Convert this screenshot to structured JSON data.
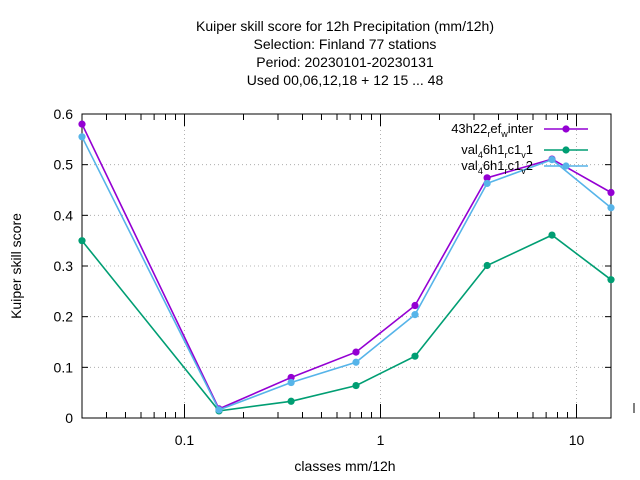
{
  "chart_data": {
    "type": "line",
    "title_lines": [
      "Kuiper skill score  for 12h Precipitation (mm/12h)",
      "Selection: Finland     77 stations",
      "Period: 20230101-20230131",
      "Used  00,06,12,18  + 12 15 ... 48"
    ],
    "xlabel": "classes mm/12h",
    "ylabel": "Kuiper skill score",
    "x_scale": "log",
    "xlim": [
      0.03,
      15
    ],
    "ylim": [
      0,
      0.6
    ],
    "x_ticks": [
      {
        "value": 0.1,
        "label": "0.1"
      },
      {
        "value": 1,
        "label": "1"
      },
      {
        "value": 10,
        "label": "10"
      }
    ],
    "y_ticks": [
      {
        "value": 0,
        "label": "0"
      },
      {
        "value": 0.1,
        "label": "0.1"
      },
      {
        "value": 0.2,
        "label": "0.2"
      },
      {
        "value": 0.3,
        "label": "0.3"
      },
      {
        "value": 0.4,
        "label": "0.4"
      },
      {
        "value": 0.5,
        "label": "0.5"
      },
      {
        "value": 0.6,
        "label": "0.6"
      }
    ],
    "grid": true,
    "legend_position": "top-right",
    "x": [
      0.03,
      0.15,
      0.35,
      0.75,
      1.5,
      3.5,
      7.5,
      15
    ],
    "series": [
      {
        "name": "43h22_ref_winter",
        "legend_parts": [
          [
            "43h22",
            "base"
          ],
          [
            "r",
            "sub"
          ],
          [
            "ef",
            "base"
          ],
          [
            "w",
            "sub"
          ],
          [
            "inter",
            "base"
          ]
        ],
        "color": "#9400d3",
        "values": [
          0.58,
          0.018,
          0.08,
          0.13,
          0.222,
          0.474,
          0.511,
          0.445
        ]
      },
      {
        "name": "val_46h1_rc1_v1",
        "legend_parts": [
          [
            "val",
            "base"
          ],
          [
            "4",
            "sub"
          ],
          [
            "6h1",
            "base"
          ],
          [
            "r",
            "sub"
          ],
          [
            "c1",
            "base"
          ],
          [
            "v",
            "sub"
          ],
          [
            "1",
            "base"
          ]
        ],
        "color": "#009e73",
        "values": [
          0.35,
          0.014,
          0.033,
          0.064,
          0.122,
          0.301,
          0.361,
          0.273
        ]
      },
      {
        "name": "val_46h1_rc1_v2",
        "legend_parts": [
          [
            "val",
            "base"
          ],
          [
            "4",
            "sub"
          ],
          [
            "6h1",
            "base"
          ],
          [
            "r",
            "sub"
          ],
          [
            "c1",
            "base"
          ],
          [
            "v",
            "sub"
          ],
          [
            "2",
            "base"
          ]
        ],
        "color": "#56b4e9",
        "values": [
          0.555,
          0.016,
          0.07,
          0.11,
          0.204,
          0.463,
          0.51,
          0.415
        ]
      }
    ]
  }
}
